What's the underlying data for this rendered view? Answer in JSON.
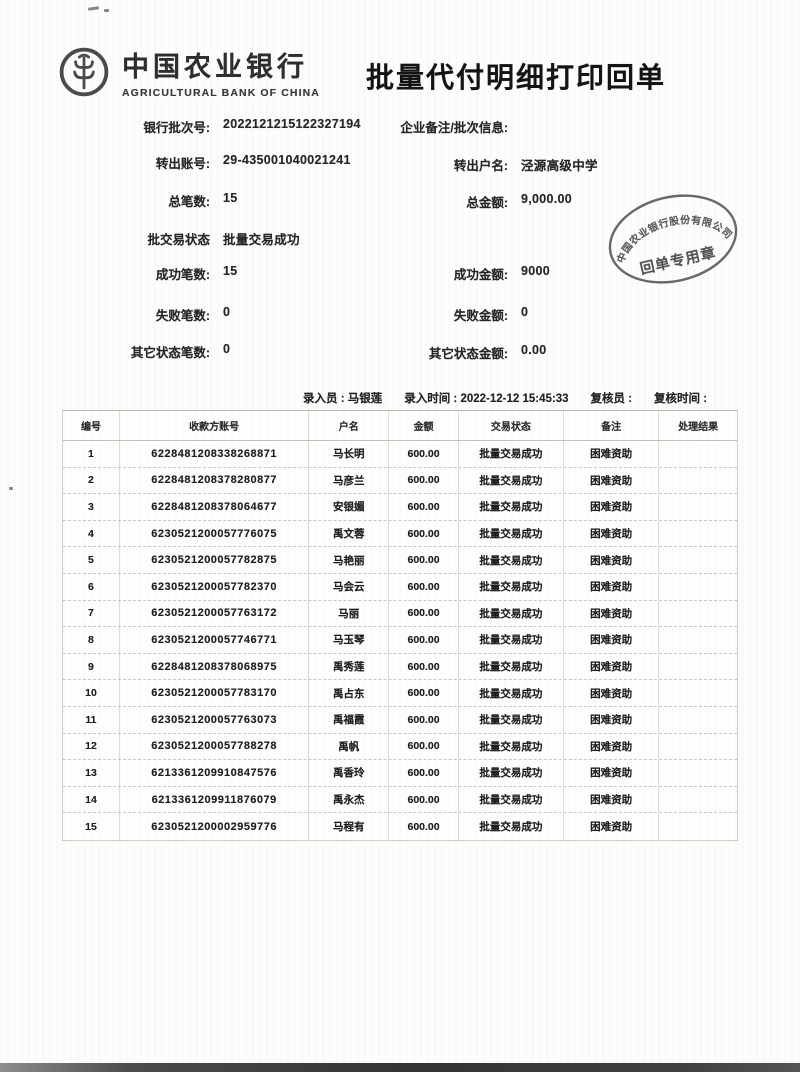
{
  "document": {
    "bank_name_cn": "中国农业银行",
    "bank_name_en": "AGRICULTURAL BANK OF CHINA",
    "title": "批量代付明细打印回单"
  },
  "summary": {
    "left": [
      {
        "label": "银行批次号:",
        "value": "2022121215122327194"
      },
      {
        "label": "转出账号:",
        "value": "29-435001040021241"
      },
      {
        "label": "总笔数:",
        "value": "15"
      },
      {
        "label": "批交易状态",
        "value": "批量交易成功"
      },
      {
        "label": "成功笔数:",
        "value": "15"
      },
      {
        "label": "失败笔数:",
        "value": "0"
      },
      {
        "label": "其它状态笔数:",
        "value": "0"
      }
    ],
    "right": [
      {
        "label": "企业备注/批次信息:",
        "value": ""
      },
      {
        "label": "转出户名:",
        "value": "泾源高级中学"
      },
      {
        "label": "总金额:",
        "value": "9,000.00"
      },
      {
        "label": "成功金额:",
        "value": "9000"
      },
      {
        "label": "失败金额:",
        "value": "0"
      },
      {
        "label": "其它状态金额:",
        "value": "0.00"
      }
    ]
  },
  "stamp": {
    "ring_text": "中国农业银行股份有限公司",
    "label": "回单专用章"
  },
  "entry_info": [
    {
      "label": "录入员",
      "value": "马银莲"
    },
    {
      "label": "录入时间",
      "value": "2022-12-12 15:45:33"
    },
    {
      "label": "复核员",
      "value": ""
    },
    {
      "label": "复核时间",
      "value": ""
    }
  ],
  "table": {
    "headers": [
      "编号",
      "收款方账号",
      "户名",
      "金额",
      "交易状态",
      "备注",
      "处理结果"
    ],
    "rows": [
      [
        "1",
        "6228481208338268871",
        "马长明",
        "600.00",
        "批量交易成功",
        "困难资助",
        ""
      ],
      [
        "2",
        "6228481208378280877",
        "马彦兰",
        "600.00",
        "批量交易成功",
        "困难资助",
        ""
      ],
      [
        "3",
        "6228481208378064677",
        "安银媚",
        "600.00",
        "批量交易成功",
        "困难资助",
        ""
      ],
      [
        "4",
        "6230521200057776075",
        "禹文蓉",
        "600.00",
        "批量交易成功",
        "困难资助",
        ""
      ],
      [
        "5",
        "6230521200057782875",
        "马艳丽",
        "600.00",
        "批量交易成功",
        "困难资助",
        ""
      ],
      [
        "6",
        "6230521200057782370",
        "马会云",
        "600.00",
        "批量交易成功",
        "困难资助",
        ""
      ],
      [
        "7",
        "6230521200057763172",
        "马丽",
        "600.00",
        "批量交易成功",
        "困难资助",
        ""
      ],
      [
        "8",
        "6230521200057746771",
        "马玉琴",
        "600.00",
        "批量交易成功",
        "困难资助",
        ""
      ],
      [
        "9",
        "6228481208378068975",
        "禹秀莲",
        "600.00",
        "批量交易成功",
        "困难资助",
        ""
      ],
      [
        "10",
        "6230521200057783170",
        "禹占东",
        "600.00",
        "批量交易成功",
        "困难资助",
        ""
      ],
      [
        "11",
        "6230521200057763073",
        "禹福霞",
        "600.00",
        "批量交易成功",
        "困难资助",
        ""
      ],
      [
        "12",
        "6230521200057788278",
        "禹帆",
        "600.00",
        "批量交易成功",
        "困难资助",
        ""
      ],
      [
        "13",
        "6213361209910847576",
        "禹香玲",
        "600.00",
        "批量交易成功",
        "困难资助",
        ""
      ],
      [
        "14",
        "6213361209911876079",
        "禹永杰",
        "600.00",
        "批量交易成功",
        "困难资助",
        ""
      ],
      [
        "15",
        "6230521200002959776",
        "马程有",
        "600.00",
        "批量交易成功",
        "困难资助",
        ""
      ]
    ]
  },
  "colors": {
    "ink": "#1f1f1f",
    "stamp_gray": "#4c4c4c",
    "table_border": "#cfcfc8"
  }
}
